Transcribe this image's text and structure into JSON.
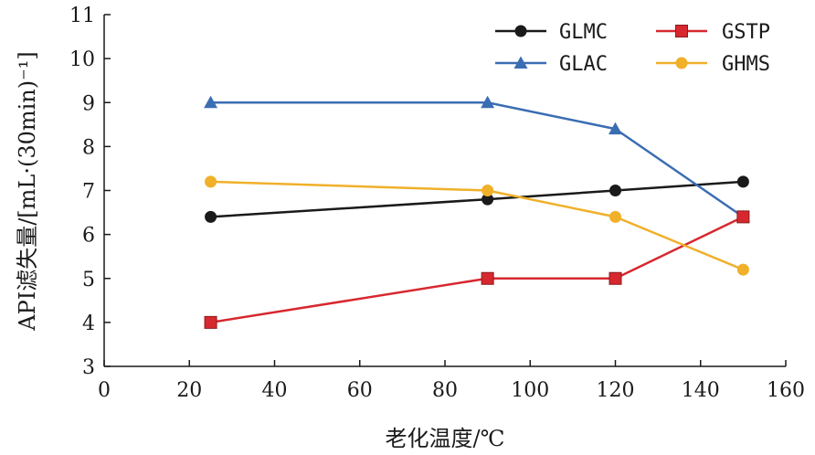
{
  "chart_data": {
    "type": "line",
    "xlabel": "老化温度/℃",
    "ylabel": "API滤失量/[mL·(30min)⁻¹]",
    "xlim": [
      0,
      160
    ],
    "ylim": [
      3,
      11
    ],
    "xticks": [
      0,
      20,
      40,
      60,
      80,
      100,
      120,
      140,
      160
    ],
    "yticks": [
      3,
      4,
      5,
      6,
      7,
      8,
      9,
      10,
      11
    ],
    "grid": false,
    "legend_position": "top-right",
    "x": [
      25,
      90,
      120,
      150
    ],
    "series": [
      {
        "name": "GLMC",
        "values": [
          6.4,
          6.8,
          7.0,
          7.2
        ],
        "color": "#1a1a1a",
        "marker": "circle"
      },
      {
        "name": "GLAC",
        "values": [
          9.0,
          9.0,
          8.4,
          6.4
        ],
        "color": "#3b6db3",
        "marker": "triangle"
      },
      {
        "name": "GSTP",
        "values": [
          4.0,
          5.0,
          5.0,
          6.4
        ],
        "color": "#d7282f",
        "marker": "square"
      },
      {
        "name": "GHMS",
        "values": [
          7.2,
          7.0,
          6.4,
          5.2
        ],
        "color": "#f0b02a",
        "marker": "circle"
      }
    ]
  }
}
